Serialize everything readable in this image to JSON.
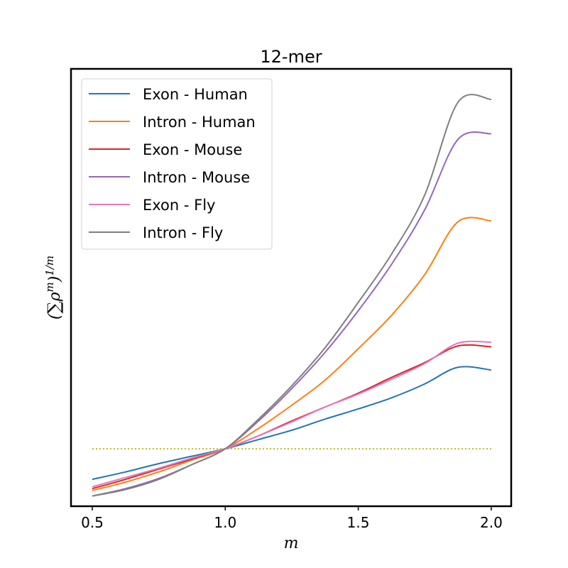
{
  "chart_data": {
    "type": "line",
    "title": "12-mer",
    "xlabel": "m",
    "ylabel": "(∑ρ^m)^(1/m)",
    "xlim": [
      0.42,
      2.075
    ],
    "ylim": [
      -0.62,
      4.1
    ],
    "xticks": [
      {
        "value": 0.5,
        "label": "0.5"
      },
      {
        "value": 1.0,
        "label": "1.0"
      },
      {
        "value": 1.5,
        "label": "1.5"
      },
      {
        "value": 2.0,
        "label": "2.0"
      }
    ],
    "grid": false,
    "legend": {
      "position": "top-left"
    },
    "reference_line": {
      "y": 0.0,
      "color": "#bcbd22",
      "style": "dotted"
    },
    "x": [
      0.5,
      0.625,
      0.75,
      0.875,
      1.0,
      1.125,
      1.25,
      1.375,
      1.5,
      1.625,
      1.75,
      1.875,
      2.0
    ],
    "series": [
      {
        "name": "Exon - Human",
        "color": "#1f77b4",
        "values": [
          -0.33,
          -0.25,
          -0.16,
          -0.08,
          0.0,
          0.1,
          0.2,
          0.32,
          0.43,
          0.55,
          0.7,
          0.88,
          0.85
        ]
      },
      {
        "name": "Intron - Human",
        "color": "#ff7f0e",
        "values": [
          -0.45,
          -0.36,
          -0.25,
          -0.12,
          0.0,
          0.22,
          0.47,
          0.74,
          1.08,
          1.44,
          1.88,
          2.45,
          2.46
        ]
      },
      {
        "name": "Exon - Mouse",
        "color": "#d62728",
        "values": [
          -0.43,
          -0.33,
          -0.22,
          -0.11,
          0.0,
          0.14,
          0.3,
          0.45,
          0.6,
          0.77,
          0.93,
          1.11,
          1.1
        ]
      },
      {
        "name": "Intron - Mouse",
        "color": "#9467bd",
        "values": [
          -0.51,
          -0.43,
          -0.32,
          -0.17,
          0.0,
          0.3,
          0.65,
          1.04,
          1.49,
          1.99,
          2.58,
          3.34,
          3.4
        ]
      },
      {
        "name": "Exon - Fly",
        "color": "#e377c2",
        "values": [
          -0.41,
          -0.31,
          -0.21,
          -0.1,
          0.0,
          0.14,
          0.29,
          0.45,
          0.59,
          0.75,
          0.92,
          1.14,
          1.15
        ]
      },
      {
        "name": "Intron - Fly",
        "color": "#7f7f7f",
        "values": [
          -0.51,
          -0.44,
          -0.33,
          -0.17,
          0.0,
          0.32,
          0.68,
          1.09,
          1.58,
          2.1,
          2.74,
          3.74,
          3.77
        ]
      }
    ]
  }
}
